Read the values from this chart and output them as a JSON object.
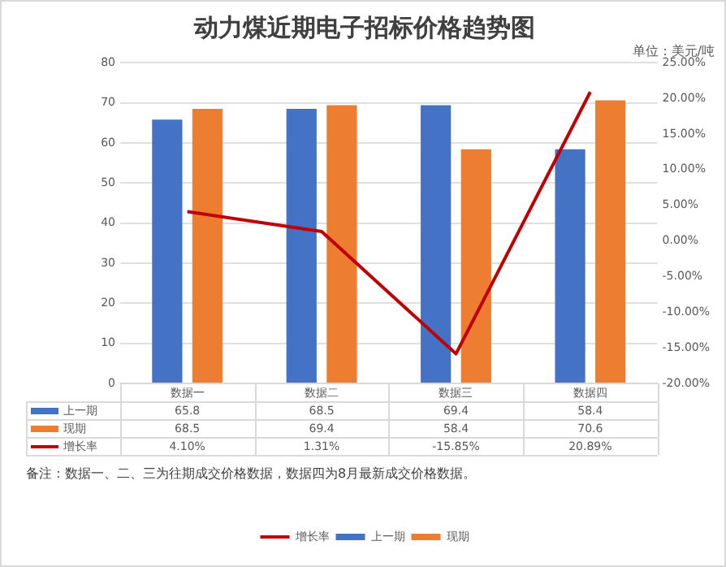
{
  "chart_data": {
    "type": "bar",
    "title": "动力煤近期电子招标价格趋势图",
    "subtitle": "单位：美元/吨",
    "categories": [
      "数据一",
      "数据二",
      "数据三",
      "数据四"
    ],
    "series": [
      {
        "name": "上一期",
        "color": "#4472c4",
        "values": [
          65.8,
          68.5,
          69.4,
          58.4
        ],
        "value_labels": [
          "65.8",
          "68.5",
          "69.4",
          "58.4"
        ]
      },
      {
        "name": "现期",
        "color": "#ed7d31",
        "values": [
          68.5,
          69.4,
          58.4,
          70.6
        ],
        "value_labels": [
          "68.5",
          "69.4",
          "58.4",
          "70.6"
        ]
      },
      {
        "name": "增长率",
        "type": "line",
        "axis": "y2",
        "color": "#c00000",
        "marker": "none",
        "line_style": "solid",
        "values": [
          4.1,
          1.31,
          -15.85,
          20.89
        ],
        "value_labels": [
          "4.10%",
          "1.31%",
          "-15.85%",
          "20.89%"
        ]
      }
    ],
    "ylim": [
      0,
      80
    ],
    "yticks": [
      0,
      10,
      20,
      30,
      40,
      50,
      60,
      70,
      80
    ],
    "y2lim": [
      -20,
      25
    ],
    "y2ticks": [
      {
        "value": -20,
        "label": "-20.00%"
      },
      {
        "value": -15,
        "label": "-15.00%"
      },
      {
        "value": -10,
        "label": "-10.00%"
      },
      {
        "value": -5,
        "label": "-5.00%"
      },
      {
        "value": 0,
        "label": "0.00%"
      },
      {
        "value": 5,
        "label": "5.00%"
      },
      {
        "value": 10,
        "label": "10.00%"
      },
      {
        "value": 15,
        "label": "15.00%"
      },
      {
        "value": 20,
        "label": "20.00%"
      },
      {
        "value": 25,
        "label": "25.00%"
      }
    ],
    "grid": "y",
    "legend": "bottom",
    "annotations": [
      "备注：数据一、二、三为往期成交价格数据，数据四为8月最新成交价格数据。"
    ]
  }
}
